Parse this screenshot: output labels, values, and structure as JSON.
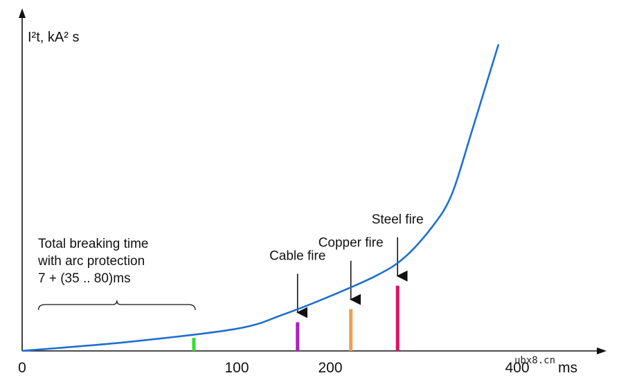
{
  "chart_data": {
    "type": "line",
    "ylabel": "I²t, kA² s",
    "xlabel": "ms",
    "x_ticks": [
      "0",
      "100",
      "200",
      "400"
    ],
    "series": [
      {
        "points": [
          [
            0,
            0
          ],
          [
            50,
            7
          ],
          [
            100,
            17
          ],
          [
            150,
            28
          ],
          [
            200,
            42
          ],
          [
            250,
            58
          ],
          [
            280,
            72
          ],
          [
            310,
            96
          ],
          [
            330,
            120
          ],
          [
            350,
            165
          ],
          [
            365,
            200
          ],
          [
            380,
            235
          ]
        ]
      }
    ],
    "markers": [
      {
        "label": "",
        "x": 80,
        "y": 10,
        "color": "#33dd33",
        "arrow": false
      },
      {
        "label": "Cable fire",
        "x": 165,
        "y": 22,
        "color": "#aa22bb",
        "arrow": true
      },
      {
        "label": "Copper fire",
        "x": 222,
        "y": 32,
        "color": "#f0a050",
        "arrow": true
      },
      {
        "label": "Steel fire",
        "x": 272,
        "y": 50,
        "color": "#dd1166",
        "arrow": true
      }
    ],
    "annotation": {
      "lines": [
        "Total breaking time",
        "with arc protection",
        "7 + (35 .. 80)ms"
      ],
      "range": [
        5,
        80
      ]
    },
    "curve_color": "#1f6fce"
  },
  "watermark": "ubx8.cn"
}
